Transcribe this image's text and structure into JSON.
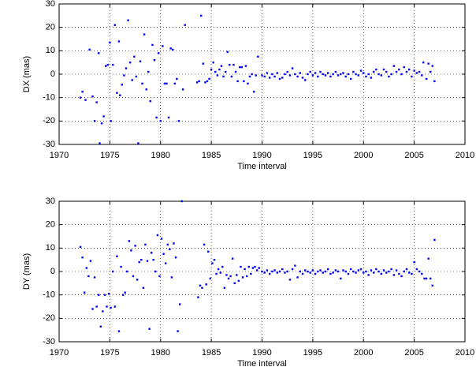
{
  "chart_data": [
    {
      "type": "scatter",
      "ylabel": "DX (mas)",
      "xlabel": "Time interval",
      "xlim": [
        1970,
        2010
      ],
      "ylim": [
        -30,
        30
      ],
      "xticks": [
        1970,
        1975,
        1980,
        1985,
        1990,
        1995,
        2000,
        2005,
        2010
      ],
      "yticks": [
        -30,
        -20,
        -10,
        0,
        10,
        20,
        30
      ],
      "grid": true,
      "series": [
        {
          "color": "#0000ff",
          "x": [
            1972.1,
            1972.3,
            1972.6,
            1973.0,
            1973.3,
            1973.5,
            1973.7,
            1973.9,
            1974.0,
            1974.2,
            1974.4,
            1974.6,
            1974.8,
            1975.0,
            1975.1,
            1975.3,
            1975.5,
            1975.7,
            1975.9,
            1976.0,
            1976.2,
            1976.4,
            1976.6,
            1976.8,
            1977.0,
            1977.2,
            1977.4,
            1977.6,
            1977.8,
            1978.0,
            1978.2,
            1978.4,
            1978.6,
            1978.8,
            1979.0,
            1979.2,
            1979.4,
            1979.6,
            1979.8,
            1980.0,
            1980.2,
            1980.4,
            1980.6,
            1980.8,
            1981.0,
            1981.2,
            1981.4,
            1981.6,
            1981.8,
            1982.2,
            1982.4,
            1983.6,
            1983.8,
            1984.0,
            1984.2,
            1984.4,
            1984.6,
            1984.8,
            1985.0,
            1985.2,
            1985.4,
            1985.6,
            1985.8,
            1986.0,
            1986.2,
            1986.4,
            1986.6,
            1986.8,
            1987.0,
            1987.2,
            1987.4,
            1987.6,
            1987.8,
            1988.0,
            1988.2,
            1988.4,
            1988.6,
            1988.8,
            1989.0,
            1989.2,
            1989.4,
            1989.6,
            1990.0,
            1990.25,
            1990.5,
            1990.75,
            1991.0,
            1991.25,
            1991.5,
            1991.75,
            1992.0,
            1992.25,
            1992.5,
            1992.75,
            1993.0,
            1993.25,
            1993.5,
            1993.75,
            1994.0,
            1994.25,
            1994.5,
            1994.75,
            1995.0,
            1995.25,
            1995.5,
            1995.75,
            1996.0,
            1996.25,
            1996.5,
            1996.75,
            1997.0,
            1997.25,
            1997.5,
            1997.75,
            1998.0,
            1998.25,
            1998.5,
            1998.75,
            1999.0,
            1999.25,
            1999.5,
            1999.75,
            2000.0,
            2000.25,
            2000.5,
            2000.75,
            2001.0,
            2001.25,
            2001.5,
            2001.75,
            2002.0,
            2002.25,
            2002.5,
            2002.75,
            2003.0,
            2003.25,
            2003.5,
            2003.75,
            2004.0,
            2004.25,
            2004.5,
            2004.75,
            2005.0,
            2005.25,
            2005.5,
            2005.75,
            2005.9,
            2006.2,
            2006.4,
            2006.6,
            2006.8,
            2007.0
          ],
          "values": [
            -10,
            -7.5,
            -11,
            10.5,
            -9.5,
            -20,
            -12,
            9,
            -29.5,
            -21,
            -18,
            3.5,
            4,
            13.5,
            -20,
            4,
            21,
            -8,
            14,
            -9,
            -4.5,
            -0.5,
            2.5,
            23,
            5,
            -2.5,
            7.5,
            -1,
            -29.5,
            5.5,
            -4,
            17,
            -6.5,
            1,
            -11.5,
            12.5,
            6,
            -18.5,
            9,
            -20,
            12,
            -4,
            -4,
            -18.5,
            11,
            10.5,
            -4,
            -2,
            -20,
            -6.5,
            21,
            -3.5,
            -3,
            25,
            4.5,
            -3.5,
            -3,
            -2,
            2,
            5,
            1,
            -0.5,
            2,
            3.5,
            -1,
            1,
            9.5,
            4,
            -1,
            4,
            1,
            -3,
            3,
            3,
            -3,
            3.5,
            -4,
            -1,
            0,
            -7.5,
            -0.5,
            7.5,
            -0.5,
            -1,
            0.5,
            -1.5,
            0,
            -1,
            0.5,
            -2,
            -1.5,
            0,
            1,
            -0.5,
            2.5,
            0,
            -1,
            0.5,
            -1.5,
            -2.5,
            0,
            1,
            -0.5,
            0.5,
            -1,
            1,
            0,
            -0.5,
            0.5,
            -1,
            0,
            1,
            -0.5,
            0,
            0.5,
            -1,
            0,
            -2,
            1,
            0,
            -0.5,
            1.5,
            0.5,
            -1,
            0,
            -1.5,
            1,
            2,
            0,
            -0.5,
            2,
            1,
            -1,
            0,
            3.5,
            1,
            2,
            0,
            3,
            1,
            2,
            -1,
            1.5,
            0.5,
            1,
            -0.5,
            5,
            -2,
            4.5,
            1,
            3.5,
            -3
          ]
        }
      ]
    },
    {
      "type": "scatter",
      "ylabel": "DY (mas)",
      "xlabel": "Time interval",
      "xlim": [
        1970,
        2010
      ],
      "ylim": [
        -30,
        30
      ],
      "xticks": [
        1970,
        1975,
        1980,
        1985,
        1990,
        1995,
        2000,
        2005,
        2010
      ],
      "yticks": [
        -30,
        -20,
        -10,
        0,
        10,
        20,
        30
      ],
      "grid": true,
      "series": [
        {
          "color": "#0000ff",
          "x": [
            1972.1,
            1972.3,
            1972.5,
            1972.7,
            1972.9,
            1973.1,
            1973.3,
            1973.5,
            1973.7,
            1973.9,
            1974.1,
            1974.3,
            1974.5,
            1974.7,
            1974.9,
            1975.1,
            1975.3,
            1975.5,
            1975.7,
            1975.9,
            1976.1,
            1976.3,
            1976.5,
            1976.7,
            1976.9,
            1977.1,
            1977.3,
            1977.5,
            1977.7,
            1977.9,
            1978.1,
            1978.3,
            1978.5,
            1978.7,
            1978.9,
            1979.1,
            1979.3,
            1979.5,
            1979.7,
            1979.9,
            1980.1,
            1980.3,
            1980.5,
            1980.7,
            1980.9,
            1981.1,
            1981.3,
            1981.5,
            1981.7,
            1981.9,
            1982.1,
            1983.7,
            1983.9,
            1984.1,
            1984.3,
            1984.5,
            1984.7,
            1984.9,
            1985.1,
            1985.3,
            1985.5,
            1985.7,
            1985.9,
            1986.1,
            1986.3,
            1986.5,
            1986.7,
            1986.9,
            1987.1,
            1987.3,
            1987.5,
            1987.7,
            1987.9,
            1988.1,
            1988.3,
            1988.5,
            1988.7,
            1988.9,
            1989.1,
            1989.3,
            1989.5,
            1989.7,
            1990.0,
            1990.25,
            1990.5,
            1990.75,
            1991.0,
            1991.25,
            1991.5,
            1991.75,
            1992.0,
            1992.25,
            1992.5,
            1992.75,
            1993.0,
            1993.25,
            1993.5,
            1993.75,
            1994.0,
            1994.25,
            1994.5,
            1994.75,
            1995.0,
            1995.25,
            1995.5,
            1995.75,
            1996.0,
            1996.25,
            1996.5,
            1996.75,
            1997.0,
            1997.25,
            1997.5,
            1997.75,
            1998.0,
            1998.25,
            1998.5,
            1998.75,
            1999.0,
            1999.25,
            1999.5,
            1999.75,
            2000.0,
            2000.25,
            2000.5,
            2000.75,
            2001.0,
            2001.25,
            2001.5,
            2001.75,
            2002.0,
            2002.25,
            2002.5,
            2002.75,
            2003.0,
            2003.25,
            2003.5,
            2003.75,
            2004.0,
            2004.25,
            2004.5,
            2004.75,
            2005.0,
            2005.25,
            2005.5,
            2005.75,
            2006.0,
            2006.2,
            2006.4,
            2006.6,
            2006.8,
            2007.0
          ],
          "values": [
            10.5,
            6,
            -9,
            1.5,
            -2,
            4.5,
            -16,
            -2.5,
            -15,
            -10,
            -23.5,
            -17,
            -10,
            -15,
            -9.5,
            -15.5,
            0,
            -15,
            6.5,
            -25.5,
            2,
            -10,
            -9,
            0,
            13,
            9,
            -2,
            11,
            -3.5,
            4,
            5,
            -7,
            11.5,
            4.5,
            -24.5,
            8,
            5,
            0,
            15.5,
            -2,
            14,
            7.5,
            3.5,
            11.5,
            9.5,
            -2.5,
            12,
            6,
            -25.5,
            -14,
            30,
            -11,
            -6,
            -7,
            11.5,
            -5.5,
            8.5,
            -3,
            3.5,
            5,
            -1,
            1,
            -0.5,
            2,
            -7,
            -1.5,
            -3,
            -2,
            5.5,
            -5,
            -1.5,
            -4,
            2,
            -2.5,
            1,
            -2,
            2,
            -1,
            1.5,
            2,
            0.5,
            1.5,
            0,
            -0.5,
            0.5,
            -1,
            0,
            0.5,
            -0.5,
            0,
            1,
            -0.5,
            0,
            -3.5,
            1,
            2.5,
            -2.5,
            0,
            -1,
            0.5,
            0,
            -0.5,
            0.5,
            -1,
            0,
            0.5,
            -0.5,
            0,
            1,
            -1,
            -0.5,
            0.5,
            0,
            -3,
            0.5,
            0,
            -1,
            1,
            0,
            -0.5,
            0.5,
            1,
            -0.5,
            0,
            -1.5,
            0.5,
            -0.5,
            1,
            0,
            -1,
            0.5,
            -0.5,
            0,
            1,
            -1.5,
            0.5,
            -1,
            -2,
            0,
            1,
            -0.5,
            -1,
            4,
            1,
            0,
            -1,
            -3,
            -3,
            5.5,
            -3,
            -6,
            13.5
          ]
        }
      ]
    }
  ]
}
